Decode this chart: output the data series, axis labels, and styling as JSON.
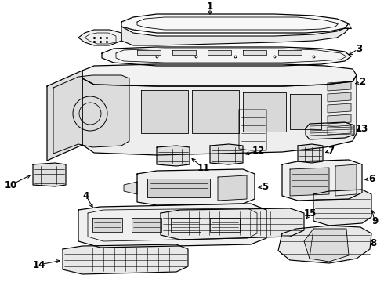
{
  "bg_color": "#ffffff",
  "line_color": "#000000",
  "text_color": "#000000",
  "fig_width": 4.9,
  "fig_height": 3.6,
  "dpi": 100
}
